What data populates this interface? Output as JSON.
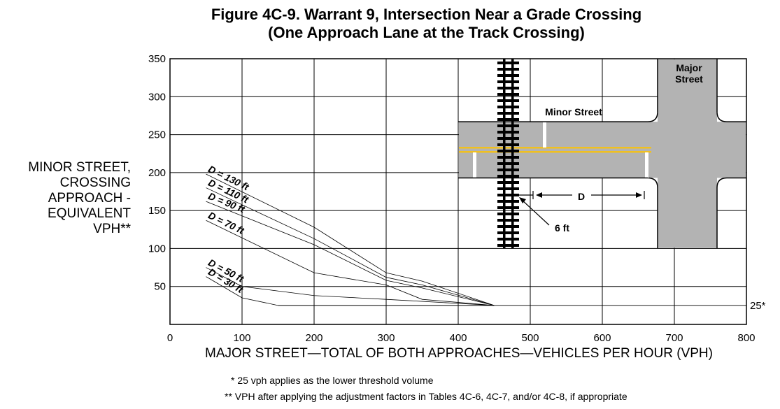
{
  "title_line1": "Figure 4C-9.  Warrant 9, Intersection Near a Grade Crossing",
  "title_line2": "(One Approach Lane at the Track Crossing)",
  "ylabel_lines": [
    "MINOR STREET,",
    "CROSSING",
    "APPROACH -",
    "EQUIVALENT",
    "VPH**"
  ],
  "xlabel": "MAJOR STREET—TOTAL OF BOTH APPROACHES—VEHICLES PER HOUR (VPH)",
  "notes": [
    "*  25 vph applies as the lower threshold volume",
    "**  VPH after applying the adjustment factors in Tables 4C-6, 4C-7, and/or 4C-8, if appropriate"
  ],
  "inset": {
    "major_street_line1": "Major",
    "major_street_line2": "Street",
    "minor_street": "Minor Street",
    "d_label": "D",
    "six_ft_label": "6 ft",
    "road_color": "#b3b3b3",
    "centerline_color": "#f0c020"
  },
  "chart_data": {
    "type": "line",
    "xlim": [
      0,
      800
    ],
    "ylim": [
      0,
      350
    ],
    "xticks": [
      0,
      100,
      200,
      300,
      400,
      500,
      600,
      700,
      800
    ],
    "yticks": [
      50,
      100,
      150,
      200,
      250,
      300,
      350
    ],
    "grid": true,
    "threshold": {
      "y": 25,
      "label": "25*"
    },
    "series": [
      {
        "name": "D = 130 ft",
        "x": [
          50,
          200,
          300,
          350,
          450
        ],
        "y": [
          198,
          128,
          68,
          57,
          25
        ]
      },
      {
        "name": "D = 110 ft",
        "x": [
          50,
          200,
          300,
          350,
          450
        ],
        "y": [
          180,
          113,
          62,
          52,
          25
        ]
      },
      {
        "name": "D = 90 ft",
        "x": [
          50,
          200,
          300,
          350,
          450
        ],
        "y": [
          162,
          105,
          58,
          48,
          25
        ]
      },
      {
        "name": "D = 70 ft",
        "x": [
          50,
          200,
          300,
          350,
          450
        ],
        "y": [
          137,
          68,
          52,
          33,
          25
        ]
      },
      {
        "name": "D = 50 ft",
        "x": [
          50,
          100,
          200,
          300,
          450
        ],
        "y": [
          75,
          50,
          38,
          33,
          25
        ]
      },
      {
        "name": "D = 30 ft",
        "x": [
          50,
          100,
          150,
          450
        ],
        "y": [
          63,
          35,
          25,
          25
        ]
      }
    ]
  }
}
